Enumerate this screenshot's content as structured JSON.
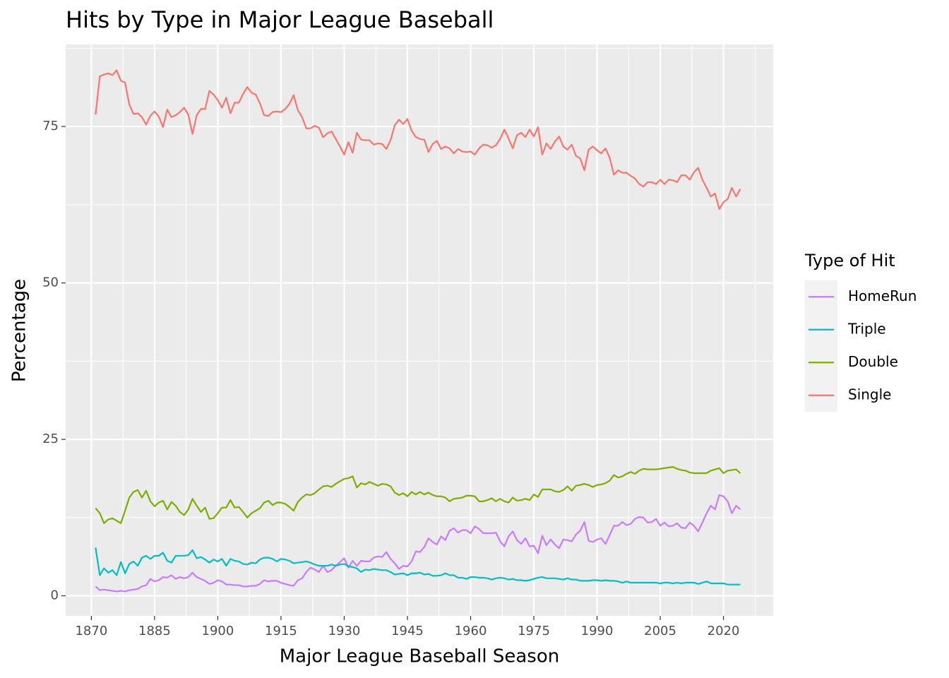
{
  "chart_data": {
    "type": "line",
    "title": "Hits by Type in Major League Baseball",
    "x_label": "Major League Baseball Season",
    "y_label": "Percentage",
    "legend_title": "Type of Hit",
    "legend_position": "right",
    "grid": true,
    "background": "#ebebeb",
    "xlim": [
      1863.9,
      2031.8
    ],
    "ylim": [
      -3.2,
      88.1
    ],
    "xticks": [
      1870,
      1885,
      1900,
      1915,
      1930,
      1945,
      1960,
      1975,
      1990,
      2005,
      2020
    ],
    "yticks": [
      0,
      25,
      50,
      75
    ],
    "x": [
      1871,
      1872,
      1873,
      1874,
      1875,
      1876,
      1877,
      1878,
      1879,
      1880,
      1881,
      1882,
      1883,
      1884,
      1885,
      1886,
      1887,
      1888,
      1889,
      1890,
      1891,
      1892,
      1893,
      1894,
      1895,
      1896,
      1897,
      1898,
      1899,
      1900,
      1901,
      1902,
      1903,
      1904,
      1905,
      1906,
      1907,
      1908,
      1909,
      1910,
      1911,
      1912,
      1913,
      1914,
      1915,
      1916,
      1917,
      1918,
      1919,
      1920,
      1921,
      1922,
      1923,
      1924,
      1925,
      1926,
      1927,
      1928,
      1929,
      1930,
      1931,
      1932,
      1933,
      1934,
      1935,
      1936,
      1937,
      1938,
      1939,
      1940,
      1941,
      1942,
      1943,
      1944,
      1945,
      1946,
      1947,
      1948,
      1949,
      1950,
      1951,
      1952,
      1953,
      1954,
      1955,
      1956,
      1957,
      1958,
      1959,
      1960,
      1961,
      1962,
      1963,
      1964,
      1965,
      1966,
      1967,
      1968,
      1969,
      1970,
      1971,
      1972,
      1973,
      1974,
      1975,
      1976,
      1977,
      1978,
      1979,
      1980,
      1981,
      1982,
      1983,
      1984,
      1985,
      1986,
      1987,
      1988,
      1989,
      1990,
      1991,
      1992,
      1993,
      1994,
      1995,
      1996,
      1997,
      1998,
      1999,
      2000,
      2001,
      2002,
      2003,
      2004,
      2005,
      2006,
      2007,
      2008,
      2009,
      2010,
      2011,
      2012,
      2013,
      2014,
      2015,
      2016,
      2017,
      2018,
      2019,
      2020,
      2021,
      2022,
      2023,
      2024
    ],
    "series": [
      {
        "name": "HomeRun",
        "color": "#C77CFF",
        "values": [
          1.5,
          0.9,
          1,
          0.9,
          0.8,
          0.7,
          0.8,
          0.7,
          0.9,
          1,
          1.1,
          1.5,
          1.7,
          2.7,
          2.3,
          2.5,
          3,
          2.9,
          3.3,
          2.7,
          3,
          2.8,
          3,
          3.7,
          3,
          2.7,
          2.4,
          1.9,
          2.1,
          2.5,
          2.3,
          1.8,
          1.8,
          1.7,
          1.7,
          1.5,
          1.5,
          1.6,
          1.6,
          1.9,
          2.5,
          2.3,
          2.4,
          2.4,
          2.1,
          1.9,
          1.7,
          1.6,
          2.5,
          2.8,
          3.8,
          4.5,
          4.2,
          3.8,
          4.8,
          3.8,
          4.1,
          4.8,
          5.4,
          6,
          4.5,
          5.6,
          4.8,
          5.6,
          5.5,
          5.5,
          6.1,
          6.3,
          6.2,
          7,
          5.9,
          5.2,
          4.3,
          4.8,
          4.7,
          5.5,
          7.1,
          7,
          7.8,
          9.2,
          8.6,
          8.2,
          9.5,
          8.9,
          10.4,
          10.8,
          10.1,
          10.5,
          10.5,
          10,
          11.1,
          10.7,
          10,
          10,
          10,
          10.1,
          8.7,
          7.9,
          9.5,
          10.3,
          8.9,
          8.3,
          9.2,
          7.9,
          8,
          6.8,
          9.6,
          8.1,
          9,
          8.2,
          7.6,
          9,
          8.9,
          8.7,
          9.8,
          10.4,
          11.8,
          8.8,
          8.6,
          9,
          9.2,
          8.3,
          9.7,
          11.2,
          11.2,
          11.8,
          11.3,
          11.5,
          12.3,
          12.6,
          12.5,
          11.7,
          11.8,
          12.3,
          11.2,
          11.7,
          11.1,
          11.2,
          11.6,
          10.9,
          10.8,
          11.7,
          11.2,
          10.3,
          11.7,
          13.2,
          14.4,
          13.8,
          16.1,
          15.9,
          15.1,
          13.2,
          14.4,
          13.8
        ]
      },
      {
        "name": "Triple",
        "color": "#00BFC4",
        "values": [
          7.7,
          3.3,
          4.4,
          3.7,
          4.1,
          3.3,
          5.4,
          3.6,
          5.1,
          5.5,
          4.8,
          6.1,
          6.4,
          5.9,
          6.4,
          6.4,
          6.9,
          5.6,
          5.3,
          6.4,
          6.4,
          6.4,
          6.5,
          7.3,
          6,
          6.2,
          5.8,
          5.3,
          5.8,
          5.5,
          5.9,
          4.8,
          5.9,
          5.6,
          5.5,
          5.1,
          5,
          5.3,
          5.2,
          5.8,
          6.1,
          6.1,
          5.9,
          5.5,
          5.9,
          5.8,
          5.6,
          5.2,
          5.3,
          5.4,
          5.5,
          5.3,
          5,
          4.8,
          4.8,
          4.8,
          5,
          4.8,
          5,
          5.1,
          4.7,
          4.6,
          4.4,
          3.8,
          4.2,
          4.1,
          4.3,
          4.2,
          4.1,
          4.1,
          3.8,
          3.4,
          3.5,
          3.6,
          3.3,
          3.6,
          3.6,
          3.7,
          3.4,
          3.5,
          3.2,
          3.2,
          3.3,
          3.6,
          3.3,
          3.3,
          2.9,
          2.9,
          2.7,
          3,
          3,
          2.9,
          2.9,
          2.8,
          2.6,
          2.8,
          2.9,
          2.8,
          2.6,
          2.7,
          2.5,
          2.5,
          2.4,
          2.5,
          2.7,
          2.9,
          3,
          2.8,
          2.8,
          2.8,
          2.7,
          2.6,
          2.8,
          2.6,
          2.6,
          2.4,
          2.4,
          2.4,
          2.5,
          2.5,
          2.4,
          2.5,
          2.4,
          2.4,
          2.3,
          2.1,
          2.3,
          2.1,
          2.1,
          2.1,
          2.1,
          2.1,
          2.1,
          2.1,
          2,
          2.1,
          2.1,
          2,
          2.1,
          2,
          2.1,
          2.1,
          2.1,
          1.9,
          2.1,
          2.3,
          2,
          2,
          2,
          2,
          1.8,
          1.8,
          1.8,
          1.8
        ]
      },
      {
        "name": "Double",
        "color": "#7CAE00",
        "values": [
          14,
          13.2,
          11.6,
          12.2,
          12.4,
          12,
          11.6,
          13.6,
          15.7,
          16.6,
          16.9,
          15.7,
          16.8,
          15.1,
          14.3,
          14.9,
          15.2,
          13.8,
          15,
          14.4,
          13.4,
          12.9,
          13.8,
          15.5,
          14.4,
          13.4,
          14.1,
          12.3,
          12.4,
          13.2,
          14.1,
          14.1,
          15.3,
          14.1,
          14.2,
          13.4,
          12.5,
          13.2,
          13.6,
          14,
          14.9,
          15.2,
          14.5,
          14.9,
          14.9,
          14.7,
          14.2,
          13.6,
          15,
          15.7,
          16.2,
          16.1,
          16.4,
          17,
          17.5,
          17.6,
          17.4,
          17.9,
          18.3,
          18.7,
          18.8,
          19.1,
          17.3,
          18,
          17.8,
          18.2,
          17.9,
          17.6,
          17.9,
          17.8,
          17.5,
          16.5,
          16.1,
          16.4,
          15.9,
          16.6,
          16.2,
          16.6,
          16.2,
          16.5,
          16.1,
          15.9,
          15.9,
          15.7,
          15.1,
          15.5,
          15.6,
          15.7,
          16,
          16,
          15.9,
          15.1,
          15.1,
          15.3,
          15.6,
          15.1,
          15.5,
          15.1,
          14.9,
          15.7,
          15.2,
          15.3,
          15.5,
          15.3,
          16.2,
          15.8,
          17,
          17,
          17,
          16.7,
          16.6,
          16.9,
          17.5,
          16.8,
          17.6,
          17.7,
          17.9,
          17.7,
          17.4,
          17.7,
          17.8,
          18,
          18.4,
          19.3,
          18.9,
          19.1,
          19.5,
          19.8,
          19.5,
          20,
          20.3,
          20.2,
          20.2,
          20.2,
          20.3,
          20.4,
          20.5,
          20.6,
          20.3,
          20.1,
          20,
          19.7,
          19.6,
          19.6,
          19.6,
          19.6,
          20,
          20.2,
          20.4,
          19.6,
          20,
          20.1,
          20.2,
          19.6
        ]
      },
      {
        "name": "Single",
        "color": "#F8766D",
        "values": [
          76.9,
          83,
          83.3,
          83.5,
          83.2,
          84,
          82.3,
          82,
          78.5,
          77,
          77.1,
          76.5,
          75.3,
          76.7,
          77.4,
          76.6,
          74.9,
          77.7,
          76.5,
          76.8,
          77.3,
          78,
          76.9,
          73.8,
          76.8,
          77.8,
          77.8,
          80.7,
          80.1,
          79.2,
          78,
          79.6,
          77.1,
          78.8,
          78.8,
          80.2,
          81.3,
          80.4,
          80.1,
          78.7,
          76.8,
          76.7,
          77.3,
          77.4,
          77.3,
          77.8,
          78.6,
          80,
          77.6,
          76.5,
          74.7,
          74.7,
          75.1,
          74.8,
          73.3,
          73.9,
          74.2,
          73,
          71.8,
          70.5,
          72.5,
          70.8,
          74,
          72.9,
          72.8,
          72.8,
          72.1,
          72.3,
          72.2,
          71.4,
          72.8,
          75.2,
          76.1,
          75.4,
          76.2,
          74.3,
          73.3,
          73,
          72.9,
          70.9,
          72.2,
          72.7,
          71.4,
          71.8,
          71.5,
          70.7,
          71.4,
          71,
          70.9,
          71,
          70.5,
          71.5,
          72.1,
          72,
          71.6,
          72,
          73,
          74.5,
          73.1,
          71.5,
          73.6,
          74,
          73.3,
          74.5,
          73.4,
          74.9,
          70.5,
          72.3,
          71.4,
          72.6,
          73.4,
          71.8,
          71.3,
          72.1,
          70.3,
          69.9,
          68,
          71.3,
          71.8,
          71.2,
          70.7,
          71.5,
          70,
          67.3,
          68,
          67.6,
          67.6,
          67.1,
          66.7,
          65.8,
          65.4,
          66.1,
          66.1,
          65.8,
          66.5,
          65.8,
          66.5,
          66.4,
          66.1,
          67.2,
          67.2,
          66.5,
          67.7,
          68.4,
          66.5,
          65.2,
          63.8,
          64.3,
          61.8,
          62.9,
          63.4,
          65.2,
          63.8,
          65
        ]
      }
    ]
  }
}
